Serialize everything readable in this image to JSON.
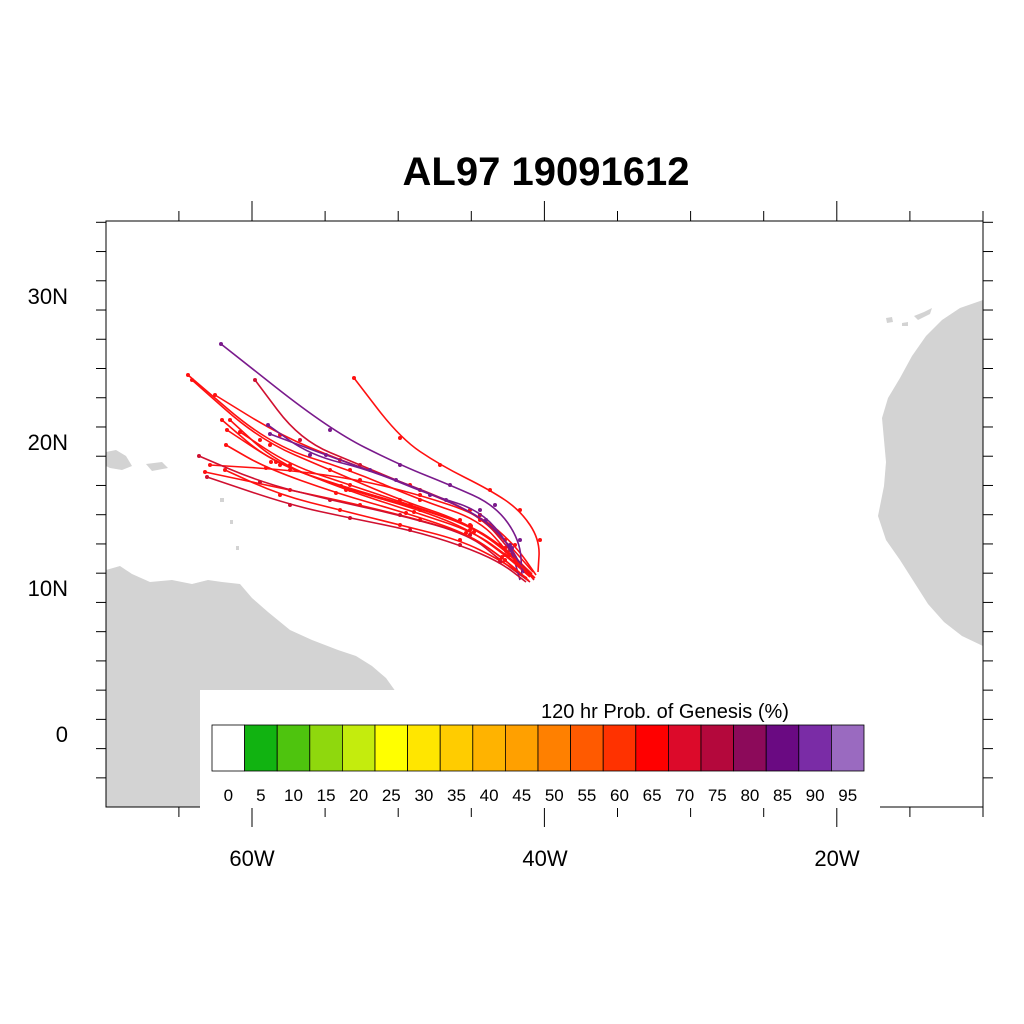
{
  "title": "AL97 19091612",
  "lat_labels": [
    "30N",
    "20N",
    "10N",
    "0"
  ],
  "lon_labels": [
    "60W",
    "40W",
    "20W"
  ],
  "colorbar": {
    "title": "120 hr Prob. of Genesis (%)",
    "labels": [
      "0",
      "5",
      "10",
      "15",
      "20",
      "25",
      "30",
      "35",
      "40",
      "45",
      "50",
      "55",
      "60",
      "65",
      "70",
      "75",
      "80",
      "85",
      "90",
      "95"
    ],
    "colors": [
      "#ffffff",
      "#11b311",
      "#4ec40e",
      "#8fd80d",
      "#c4ec0d",
      "#ffff00",
      "#ffe600",
      "#ffcc00",
      "#ffb300",
      "#ffa000",
      "#ff8000",
      "#ff5a00",
      "#ff3200",
      "#ff0000",
      "#dc0a2a",
      "#b4083c",
      "#8c0a5a",
      "#6a0a82",
      "#7a2ca6",
      "#9a6ac0"
    ]
  },
  "map": {
    "land_color": "#d3d3d3",
    "ocean_color": "#ffffff"
  },
  "track_colors": {
    "red": "#ff1010",
    "crimson": "#d01030",
    "purple": "#7a1a8c"
  }
}
